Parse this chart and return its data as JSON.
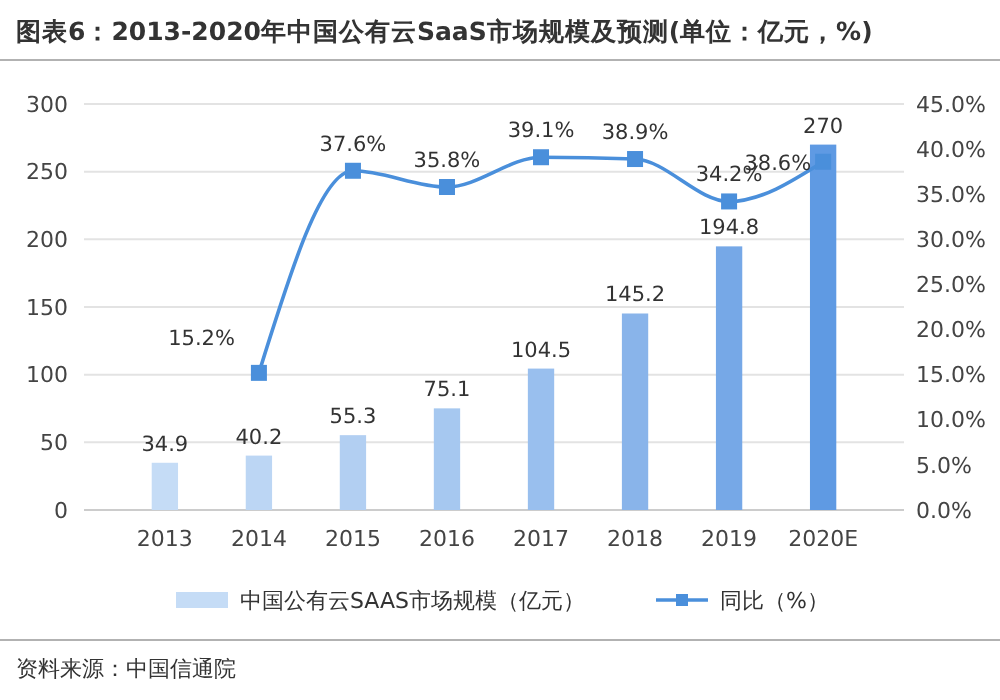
{
  "chart_data": {
    "type": "bar",
    "title": "图表6：2013-2020年中国公有云SaaS市场规模及预测(单位：亿元，%)",
    "categories": [
      "2013",
      "2014",
      "2015",
      "2016",
      "2017",
      "2018",
      "2019",
      "2020E"
    ],
    "series": [
      {
        "name": "中国公有云SAAS市场规模（亿元）",
        "colors": [
          "#c5dcf6",
          "#bcd6f4",
          "#b2cff2",
          "#a6c8f0",
          "#99bfee",
          "#89b4ea",
          "#76a8e7",
          "#5f9ae3"
        ],
        "values": [
          34.9,
          40.2,
          55.3,
          75.1,
          104.5,
          145.2,
          194.8,
          270
        ],
        "value_labels": [
          "34.9",
          "40.2",
          "55.3",
          "75.1",
          "104.5",
          "145.2",
          "194.8",
          "270"
        ]
      },
      {
        "name": "同比（%）",
        "type": "line",
        "axis": "y2",
        "color": "#4a8fdb",
        "marker": "square",
        "values": [
          null,
          15.2,
          37.6,
          35.8,
          39.1,
          38.9,
          34.2,
          38.6
        ],
        "value_labels": [
          null,
          "15.2%",
          "37.6%",
          "35.8%",
          "39.1%",
          "38.9%",
          "34.2%",
          "38.6%"
        ]
      }
    ],
    "ylim": [
      0,
      300
    ],
    "yticks": [
      0,
      50,
      100,
      150,
      200,
      250,
      300
    ],
    "y2lim": [
      0,
      45
    ],
    "y2ticks": [
      {
        "value": 0,
        "label": "0.0%"
      },
      {
        "value": 5,
        "label": "5.0%"
      },
      {
        "value": 10,
        "label": "10.0%"
      },
      {
        "value": 15,
        "label": "15.0%"
      },
      {
        "value": 20,
        "label": "20.0%"
      },
      {
        "value": 25,
        "label": "25.0%"
      },
      {
        "value": 30,
        "label": "30.0%"
      },
      {
        "value": 35,
        "label": "35.0%"
      },
      {
        "value": 40,
        "label": "40.0%"
      },
      {
        "value": 45,
        "label": "45.0%"
      }
    ],
    "grid": "y",
    "legend": "bottom",
    "annotations": [
      "资料来源：中国信通院"
    ]
  }
}
